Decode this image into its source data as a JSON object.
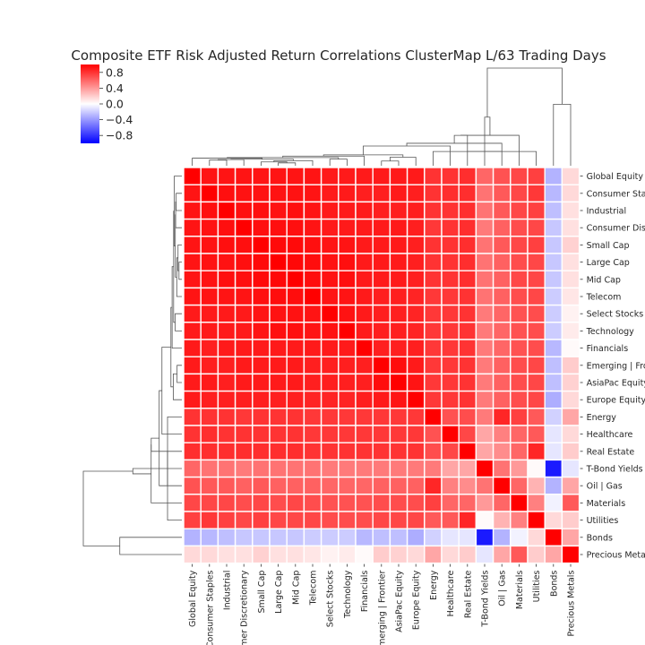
{
  "chart_data": {
    "type": "heatmap",
    "variant": "clustermap",
    "title": "Composite ETF Risk Adjusted Return Correlations ClusterMap L/63 Trading Days",
    "labels": [
      "Global Equity",
      "Consumer Staples",
      "Industrial",
      "Consumer Discretionary",
      "Small Cap",
      "Large Cap",
      "Mid Cap",
      "Telecom",
      "Select Stocks",
      "Technology",
      "Financials",
      "Emerging | Frontier",
      "AsiaPac Equity",
      "Europe Equity",
      "Energy",
      "Healthcare",
      "Real Estate",
      "T-Bond Yields",
      "Oil | Gas",
      "Materials",
      "Utilities",
      "Bonds",
      "Precious Metals"
    ],
    "colorbar": {
      "min": -1.0,
      "max": 1.0,
      "ticks": [
        "0.8",
        "0.4",
        "0.0",
        "−0.4",
        "−0.8"
      ],
      "tick_values": [
        0.8,
        0.4,
        0.0,
        -0.4,
        -0.8
      ]
    },
    "colormap": [
      "#0000ff",
      "#ffffff",
      "#ff0000"
    ],
    "row_dendrogram_side": "left",
    "col_dendrogram_side": "top",
    "values": [
      [
        1.0,
        0.92,
        0.92,
        0.92,
        0.92,
        0.92,
        0.92,
        0.92,
        0.9,
        0.9,
        0.9,
        0.9,
        0.9,
        0.9,
        0.8,
        0.8,
        0.82,
        0.6,
        0.68,
        0.72,
        0.75,
        -0.3,
        0.15
      ],
      [
        0.92,
        1.0,
        0.94,
        0.93,
        0.93,
        0.93,
        0.93,
        0.92,
        0.9,
        0.9,
        0.88,
        0.88,
        0.9,
        0.88,
        0.8,
        0.82,
        0.82,
        0.55,
        0.65,
        0.72,
        0.78,
        -0.28,
        0.15
      ],
      [
        0.92,
        0.94,
        1.0,
        0.94,
        0.94,
        0.93,
        0.94,
        0.92,
        0.9,
        0.9,
        0.9,
        0.88,
        0.88,
        0.88,
        0.8,
        0.8,
        0.82,
        0.55,
        0.65,
        0.72,
        0.75,
        -0.25,
        0.12
      ],
      [
        0.92,
        0.93,
        0.94,
        1.0,
        0.94,
        0.94,
        0.94,
        0.92,
        0.9,
        0.9,
        0.9,
        0.9,
        0.9,
        0.88,
        0.78,
        0.8,
        0.82,
        0.52,
        0.62,
        0.7,
        0.72,
        -0.22,
        0.12
      ],
      [
        0.92,
        0.93,
        0.94,
        0.94,
        1.0,
        0.96,
        0.96,
        0.94,
        0.92,
        0.92,
        0.9,
        0.9,
        0.9,
        0.88,
        0.8,
        0.8,
        0.82,
        0.55,
        0.65,
        0.72,
        0.75,
        -0.22,
        0.18
      ],
      [
        0.92,
        0.93,
        0.93,
        0.94,
        0.96,
        1.0,
        0.97,
        0.95,
        0.93,
        0.94,
        0.9,
        0.9,
        0.9,
        0.88,
        0.8,
        0.8,
        0.82,
        0.55,
        0.62,
        0.7,
        0.72,
        -0.22,
        0.12
      ],
      [
        0.92,
        0.93,
        0.94,
        0.94,
        0.96,
        0.97,
        1.0,
        0.95,
        0.93,
        0.94,
        0.9,
        0.9,
        0.9,
        0.88,
        0.8,
        0.8,
        0.82,
        0.55,
        0.62,
        0.72,
        0.72,
        -0.22,
        0.12
      ],
      [
        0.92,
        0.92,
        0.92,
        0.92,
        0.94,
        0.95,
        0.95,
        1.0,
        0.92,
        0.92,
        0.9,
        0.88,
        0.88,
        0.86,
        0.78,
        0.78,
        0.8,
        0.55,
        0.62,
        0.7,
        0.72,
        -0.2,
        0.1
      ],
      [
        0.9,
        0.9,
        0.9,
        0.9,
        0.92,
        0.93,
        0.93,
        0.92,
        1.0,
        0.93,
        0.9,
        0.88,
        0.88,
        0.86,
        0.78,
        0.78,
        0.8,
        0.52,
        0.6,
        0.68,
        0.7,
        -0.2,
        0.05
      ],
      [
        0.9,
        0.9,
        0.9,
        0.9,
        0.92,
        0.94,
        0.94,
        0.92,
        0.93,
        1.0,
        0.9,
        0.88,
        0.88,
        0.86,
        0.78,
        0.78,
        0.8,
        0.52,
        0.6,
        0.68,
        0.7,
        -0.2,
        0.08
      ],
      [
        0.9,
        0.88,
        0.9,
        0.9,
        0.9,
        0.9,
        0.9,
        0.9,
        0.9,
        0.9,
        1.0,
        0.88,
        0.88,
        0.88,
        0.78,
        0.78,
        0.8,
        0.52,
        0.6,
        0.68,
        0.7,
        -0.28,
        0.02
      ],
      [
        0.9,
        0.88,
        0.88,
        0.9,
        0.9,
        0.9,
        0.9,
        0.88,
        0.88,
        0.88,
        0.88,
        1.0,
        0.95,
        0.9,
        0.78,
        0.78,
        0.8,
        0.52,
        0.62,
        0.7,
        0.72,
        -0.25,
        0.2
      ],
      [
        0.9,
        0.9,
        0.88,
        0.9,
        0.9,
        0.9,
        0.9,
        0.88,
        0.88,
        0.88,
        0.88,
        0.95,
        1.0,
        0.92,
        0.78,
        0.78,
        0.8,
        0.52,
        0.62,
        0.7,
        0.72,
        -0.25,
        0.18
      ],
      [
        0.9,
        0.88,
        0.88,
        0.88,
        0.88,
        0.88,
        0.88,
        0.86,
        0.86,
        0.86,
        0.88,
        0.9,
        0.92,
        1.0,
        0.78,
        0.78,
        0.8,
        0.52,
        0.62,
        0.7,
        0.72,
        -0.32,
        0.15
      ],
      [
        0.8,
        0.8,
        0.8,
        0.78,
        0.8,
        0.8,
        0.8,
        0.78,
        0.78,
        0.78,
        0.78,
        0.78,
        0.78,
        0.78,
        1.0,
        0.68,
        0.7,
        0.52,
        0.85,
        0.75,
        0.65,
        -0.18,
        0.35
      ],
      [
        0.8,
        0.82,
        0.8,
        0.8,
        0.8,
        0.8,
        0.8,
        0.78,
        0.78,
        0.78,
        0.78,
        0.78,
        0.78,
        0.78,
        0.68,
        1.0,
        0.72,
        0.35,
        0.5,
        0.6,
        0.65,
        -0.1,
        0.15
      ],
      [
        0.82,
        0.82,
        0.82,
        0.82,
        0.82,
        0.82,
        0.82,
        0.8,
        0.8,
        0.8,
        0.8,
        0.8,
        0.8,
        0.8,
        0.7,
        0.72,
        1.0,
        0.35,
        0.45,
        0.6,
        0.85,
        -0.1,
        0.2
      ],
      [
        0.6,
        0.55,
        0.55,
        0.52,
        0.55,
        0.55,
        0.55,
        0.55,
        0.52,
        0.52,
        0.52,
        0.52,
        0.52,
        0.52,
        0.52,
        0.35,
        0.35,
        1.0,
        0.55,
        0.4,
        0.02,
        -0.9,
        -0.1
      ],
      [
        0.68,
        0.65,
        0.65,
        0.62,
        0.65,
        0.62,
        0.62,
        0.62,
        0.6,
        0.6,
        0.6,
        0.62,
        0.62,
        0.62,
        0.85,
        0.5,
        0.45,
        0.55,
        1.0,
        0.6,
        0.3,
        -0.3,
        0.35
      ],
      [
        0.72,
        0.72,
        0.72,
        0.7,
        0.72,
        0.7,
        0.72,
        0.7,
        0.68,
        0.68,
        0.68,
        0.7,
        0.7,
        0.7,
        0.75,
        0.6,
        0.6,
        0.4,
        0.6,
        1.0,
        0.5,
        -0.05,
        0.65
      ],
      [
        0.75,
        0.78,
        0.75,
        0.72,
        0.75,
        0.72,
        0.72,
        0.72,
        0.7,
        0.7,
        0.7,
        0.72,
        0.72,
        0.72,
        0.65,
        0.65,
        0.85,
        0.02,
        0.3,
        0.5,
        1.0,
        0.15,
        0.2
      ],
      [
        -0.3,
        -0.28,
        -0.25,
        -0.22,
        -0.22,
        -0.22,
        -0.22,
        -0.2,
        -0.2,
        -0.2,
        -0.28,
        -0.25,
        -0.25,
        -0.32,
        -0.18,
        -0.1,
        -0.1,
        -0.9,
        -0.3,
        -0.05,
        0.15,
        1.0,
        0.35
      ],
      [
        0.15,
        0.15,
        0.12,
        0.12,
        0.18,
        0.12,
        0.12,
        0.1,
        0.05,
        0.08,
        0.02,
        0.2,
        0.18,
        0.15,
        0.35,
        0.15,
        0.2,
        -0.1,
        0.35,
        0.65,
        0.2,
        0.35,
        1.0
      ]
    ]
  }
}
